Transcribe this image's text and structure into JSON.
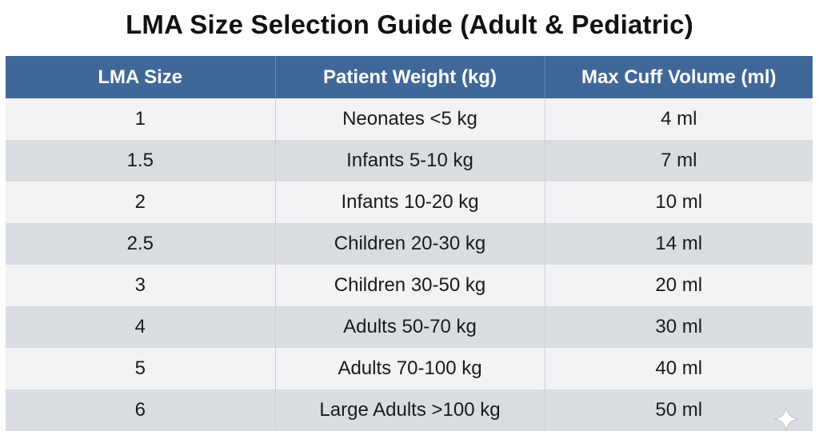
{
  "title": "LMA Size Selection Guide (Adult & Pediatric)",
  "table": {
    "headers": [
      "LMA Size",
      "Patient Weight (kg)",
      "Max Cuff Volume (ml)"
    ],
    "rows": [
      [
        "1",
        "Neonates <5 kg",
        "4 ml"
      ],
      [
        "1.5",
        "Infants 5-10 kg",
        "7 ml"
      ],
      [
        "2",
        "Infants 10-20 kg",
        "10 ml"
      ],
      [
        "2.5",
        "Children 20-30 kg",
        "14 ml"
      ],
      [
        "3",
        "Children 30-50 kg",
        "20 ml"
      ],
      [
        "4",
        "Adults 50-70 kg",
        "30 ml"
      ],
      [
        "5",
        "Adults 70-100 kg",
        "40 ml"
      ],
      [
        "6",
        "Large Adults >100 kg",
        "50 ml"
      ]
    ]
  },
  "colors": {
    "header_bg": "#3f6899",
    "row_light": "#f2f3f5",
    "row_dark": "#d9dde2"
  },
  "watermark_icon": "sparkle-icon"
}
